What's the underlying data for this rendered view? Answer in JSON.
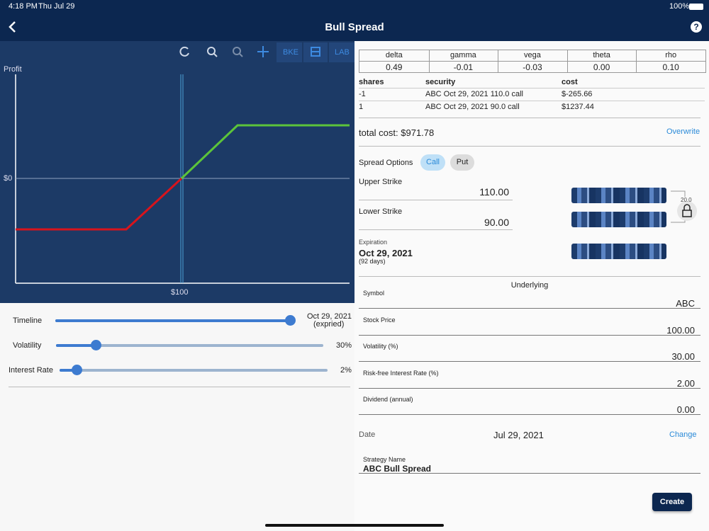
{
  "status": {
    "time": "4:18 PM",
    "date": "Thu Jul 29",
    "battery": "100%"
  },
  "nav": {
    "title": "Bull Spread",
    "help": "?"
  },
  "toolbar": {
    "bke": "BKE",
    "lab": "LAB"
  },
  "payoff": {
    "y_label": "Profit",
    "zero_label": "$0",
    "x_label": "$100"
  },
  "sliders": [
    {
      "label": "Timeline",
      "value": "Oct 29, 2021",
      "note": "(expried)"
    },
    {
      "label": "Volatility",
      "value": "30%"
    },
    {
      "label": "Interest Rate",
      "value": "2%"
    }
  ],
  "greeks": {
    "headers": [
      "delta",
      "gamma",
      "vega",
      "theta",
      "rho"
    ],
    "values": [
      "0.49",
      "-0.01",
      "-0.03",
      "0.00",
      "0.10"
    ]
  },
  "positions": {
    "headers": [
      "shares",
      "security",
      "cost"
    ],
    "rows": [
      [
        "-1",
        "ABC Oct 29, 2021 110.0 call",
        "$-265.66"
      ],
      [
        "1",
        "ABC Oct 29, 2021 90.0 call",
        "$1237.44"
      ]
    ]
  },
  "total_cost": "total cost: $971.78",
  "overwrite": "Overwrite",
  "spread": {
    "label": "Spread Options",
    "call": "Call",
    "put": "Put"
  },
  "upper_strike": {
    "label": "Upper Strike",
    "value": "110.00"
  },
  "lower_strike": {
    "label": "Lower Strike",
    "value": "90.00"
  },
  "lock_width": "20.0",
  "expiration": {
    "label": "Expiration",
    "date": "Oct 29, 2021",
    "days": "(92 days)"
  },
  "underlying": {
    "title": "Underlying",
    "fields": [
      {
        "label": "Symbol",
        "value": "ABC"
      },
      {
        "label": "Stock Price",
        "value": "100.00"
      },
      {
        "label": "Volatility (%)",
        "value": "30.00"
      },
      {
        "label": "Risk-free Interest Rate (%)",
        "value": "2.00"
      },
      {
        "label": "Dividend (annual)",
        "value": "0.00"
      }
    ]
  },
  "date": {
    "label": "Date",
    "value": "Jul 29, 2021",
    "action": "Change"
  },
  "strategy": {
    "label": "Strategy Name",
    "value": "ABC Bull Spread"
  },
  "create": "Create"
}
